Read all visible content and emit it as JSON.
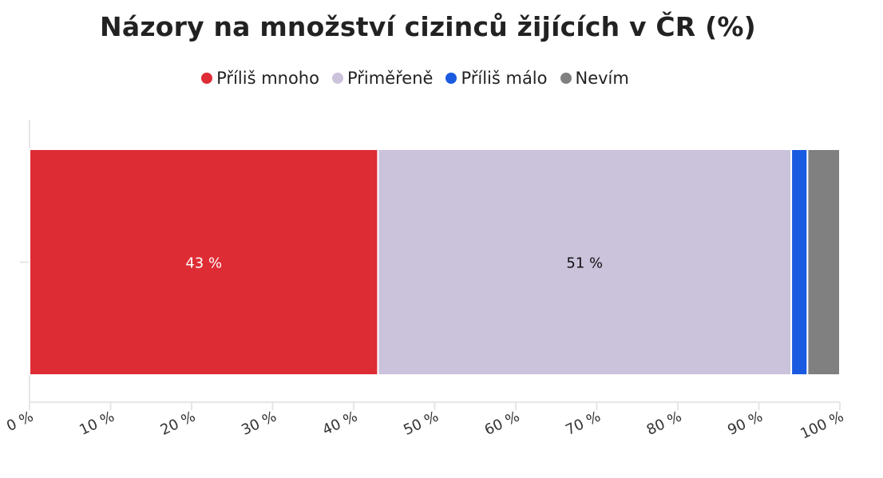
{
  "chart_data": {
    "type": "bar",
    "orientation": "horizontal",
    "stacked": true,
    "title": "Názory na množství cizinců žijících v ČR (%)",
    "categories": [
      ""
    ],
    "series": [
      {
        "name": "Příliš mnoho",
        "values": [
          43
        ],
        "color": "#de2c35",
        "label": "43 %",
        "label_color": "#ffffff"
      },
      {
        "name": "Přiměřeně",
        "values": [
          51
        ],
        "color": "#cbc2dc",
        "label": "51 %",
        "label_color": "#111111"
      },
      {
        "name": "Příliš málo",
        "values": [
          2
        ],
        "color": "#1a5ae0",
        "label": "",
        "label_color": "#111111"
      },
      {
        "name": "Nevím",
        "values": [
          4
        ],
        "color": "#808080",
        "label": "",
        "label_color": "#111111"
      }
    ],
    "xlim": [
      0,
      100
    ],
    "x_ticks": [
      "0 %",
      "10 %",
      "20 %",
      "30 %",
      "40 %",
      "50 %",
      "60 %",
      "70 %",
      "80 %",
      "90 %",
      "100 %"
    ],
    "xlabel": "",
    "ylabel": "",
    "legend_position": "top-center",
    "grid": false
  }
}
